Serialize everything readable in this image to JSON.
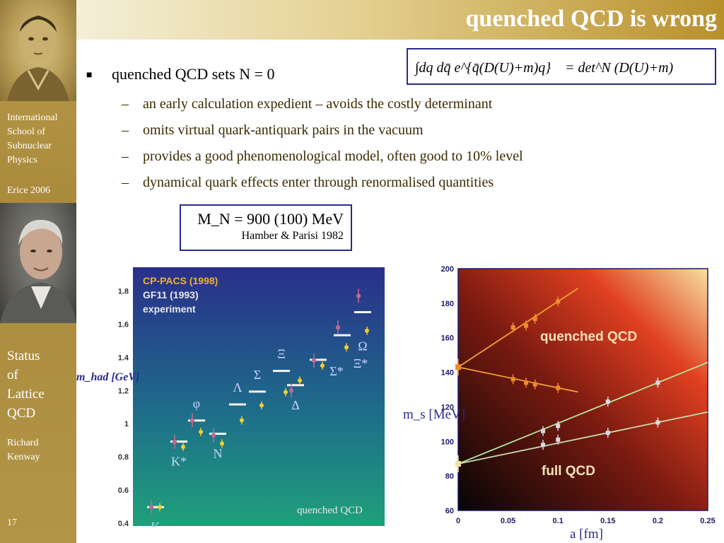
{
  "sidebar": {
    "school": [
      "International",
      "School of",
      "Subnuclear",
      "Physics"
    ],
    "venue": "Erice 2006",
    "topic": [
      "Status",
      "of",
      "Lattice",
      "QCD"
    ],
    "author": [
      "Richard",
      "Kenway"
    ],
    "page_number": "17"
  },
  "slide": {
    "title": "quenched QCD is wrong",
    "bullet": "quenched QCD sets N = 0",
    "subbullets": [
      "an early calculation expedient – avoids the costly determinant",
      "omits virtual quark-antiquark pairs in the vacuum",
      "provides a good phenomenological model, often good to 10% level",
      "dynamical quark effects enter through renormalised quantities"
    ],
    "formula_lhs": "∫dq dq̄ e^{q̄(D(U)+m)q}",
    "formula_rhs": "= det^N (D(U)+m)",
    "result": "M_N = 900 (100) MeV",
    "result_value": "= 900 (100) MeV",
    "result_ref": "Hamber & Parisi 1982"
  },
  "colors": {
    "sidebar": "#ad8f40",
    "title_text": "#ffffff",
    "subbullet_text": "#3a2a00",
    "box_border": "#2a2a8c"
  },
  "chart_data": [
    {
      "type": "scatter",
      "title": "",
      "legend": [
        "CP-PACS (1998)",
        "GF11 (1993)",
        "experiment"
      ],
      "legend_placement": "top-left",
      "annotation": "quenched QCD",
      "ylabel": "m_had [GeV]",
      "ylim": [
        0.4,
        1.9
      ],
      "yticks": [
        "0.4",
        "0.6",
        "0.8",
        "1",
        "1.2",
        "1.4",
        "1.6",
        "1.8"
      ],
      "particles": [
        {
          "label": "K",
          "experiment": 0.497,
          "cp_pacs": 0.497,
          "gf11": 0.497
        },
        {
          "label": "K*",
          "experiment": 0.892,
          "cp_pacs": 0.89,
          "gf11": 0.86
        },
        {
          "label": "N",
          "experiment": 0.939,
          "cp_pacs": 0.93,
          "gf11": 0.88
        },
        {
          "label": "φ",
          "experiment": 1.019,
          "cp_pacs": 1.02,
          "gf11": 0.95
        },
        {
          "label": "Λ",
          "experiment": 1.116,
          "cp_pacs": null,
          "gf11": 1.02
        },
        {
          "label": "Σ",
          "experiment": 1.193,
          "cp_pacs": null,
          "gf11": 1.11
        },
        {
          "label": "Ξ",
          "experiment": 1.318,
          "cp_pacs": null,
          "gf11": 1.19
        },
        {
          "label": "Δ",
          "experiment": 1.232,
          "cp_pacs": 1.2,
          "gf11": 1.26
        },
        {
          "label": "Σ*",
          "experiment": 1.385,
          "cp_pacs": 1.38,
          "gf11": 1.35
        },
        {
          "label": "Ξ*",
          "experiment": 1.533,
          "cp_pacs": 1.58,
          "gf11": 1.46
        },
        {
          "label": "Ω",
          "experiment": 1.672,
          "cp_pacs": 1.77,
          "gf11": 1.56
        }
      ]
    },
    {
      "type": "line",
      "title": "",
      "xlabel": "a [fm]",
      "ylabel": "m_s [MeV]",
      "xlim": [
        0,
        0.25
      ],
      "ylim": [
        60,
        200
      ],
      "xticks": [
        "0",
        "0.05",
        "0.1",
        "0.15",
        "0.2",
        "0.25"
      ],
      "yticks": [
        "60",
        "80",
        "100",
        "120",
        "140",
        "160",
        "180",
        "200"
      ],
      "annotations": [
        "quenched QCD",
        "full QCD"
      ],
      "series": [
        {
          "name": "quenched QCD",
          "x": [
            0.055,
            0.068,
            0.077,
            0.1
          ],
          "y": [
            166,
            167,
            171,
            181
          ]
        },
        {
          "name": "quenched QCD",
          "x": [
            0.055,
            0.068,
            0.077,
            0.1
          ],
          "y": [
            136,
            134,
            133,
            131
          ]
        },
        {
          "name": "full QCD",
          "x": [
            0.085,
            0.1,
            0.15,
            0.2
          ],
          "y": [
            106,
            109,
            123,
            134
          ]
        },
        {
          "name": "full QCD",
          "x": [
            0.085,
            0.1,
            0.15,
            0.2
          ],
          "y": [
            98,
            101,
            105,
            111
          ]
        }
      ],
      "continuum_values": [
        {
          "x": 0,
          "y": 143
        },
        {
          "x": 0,
          "y": 87
        }
      ]
    }
  ]
}
